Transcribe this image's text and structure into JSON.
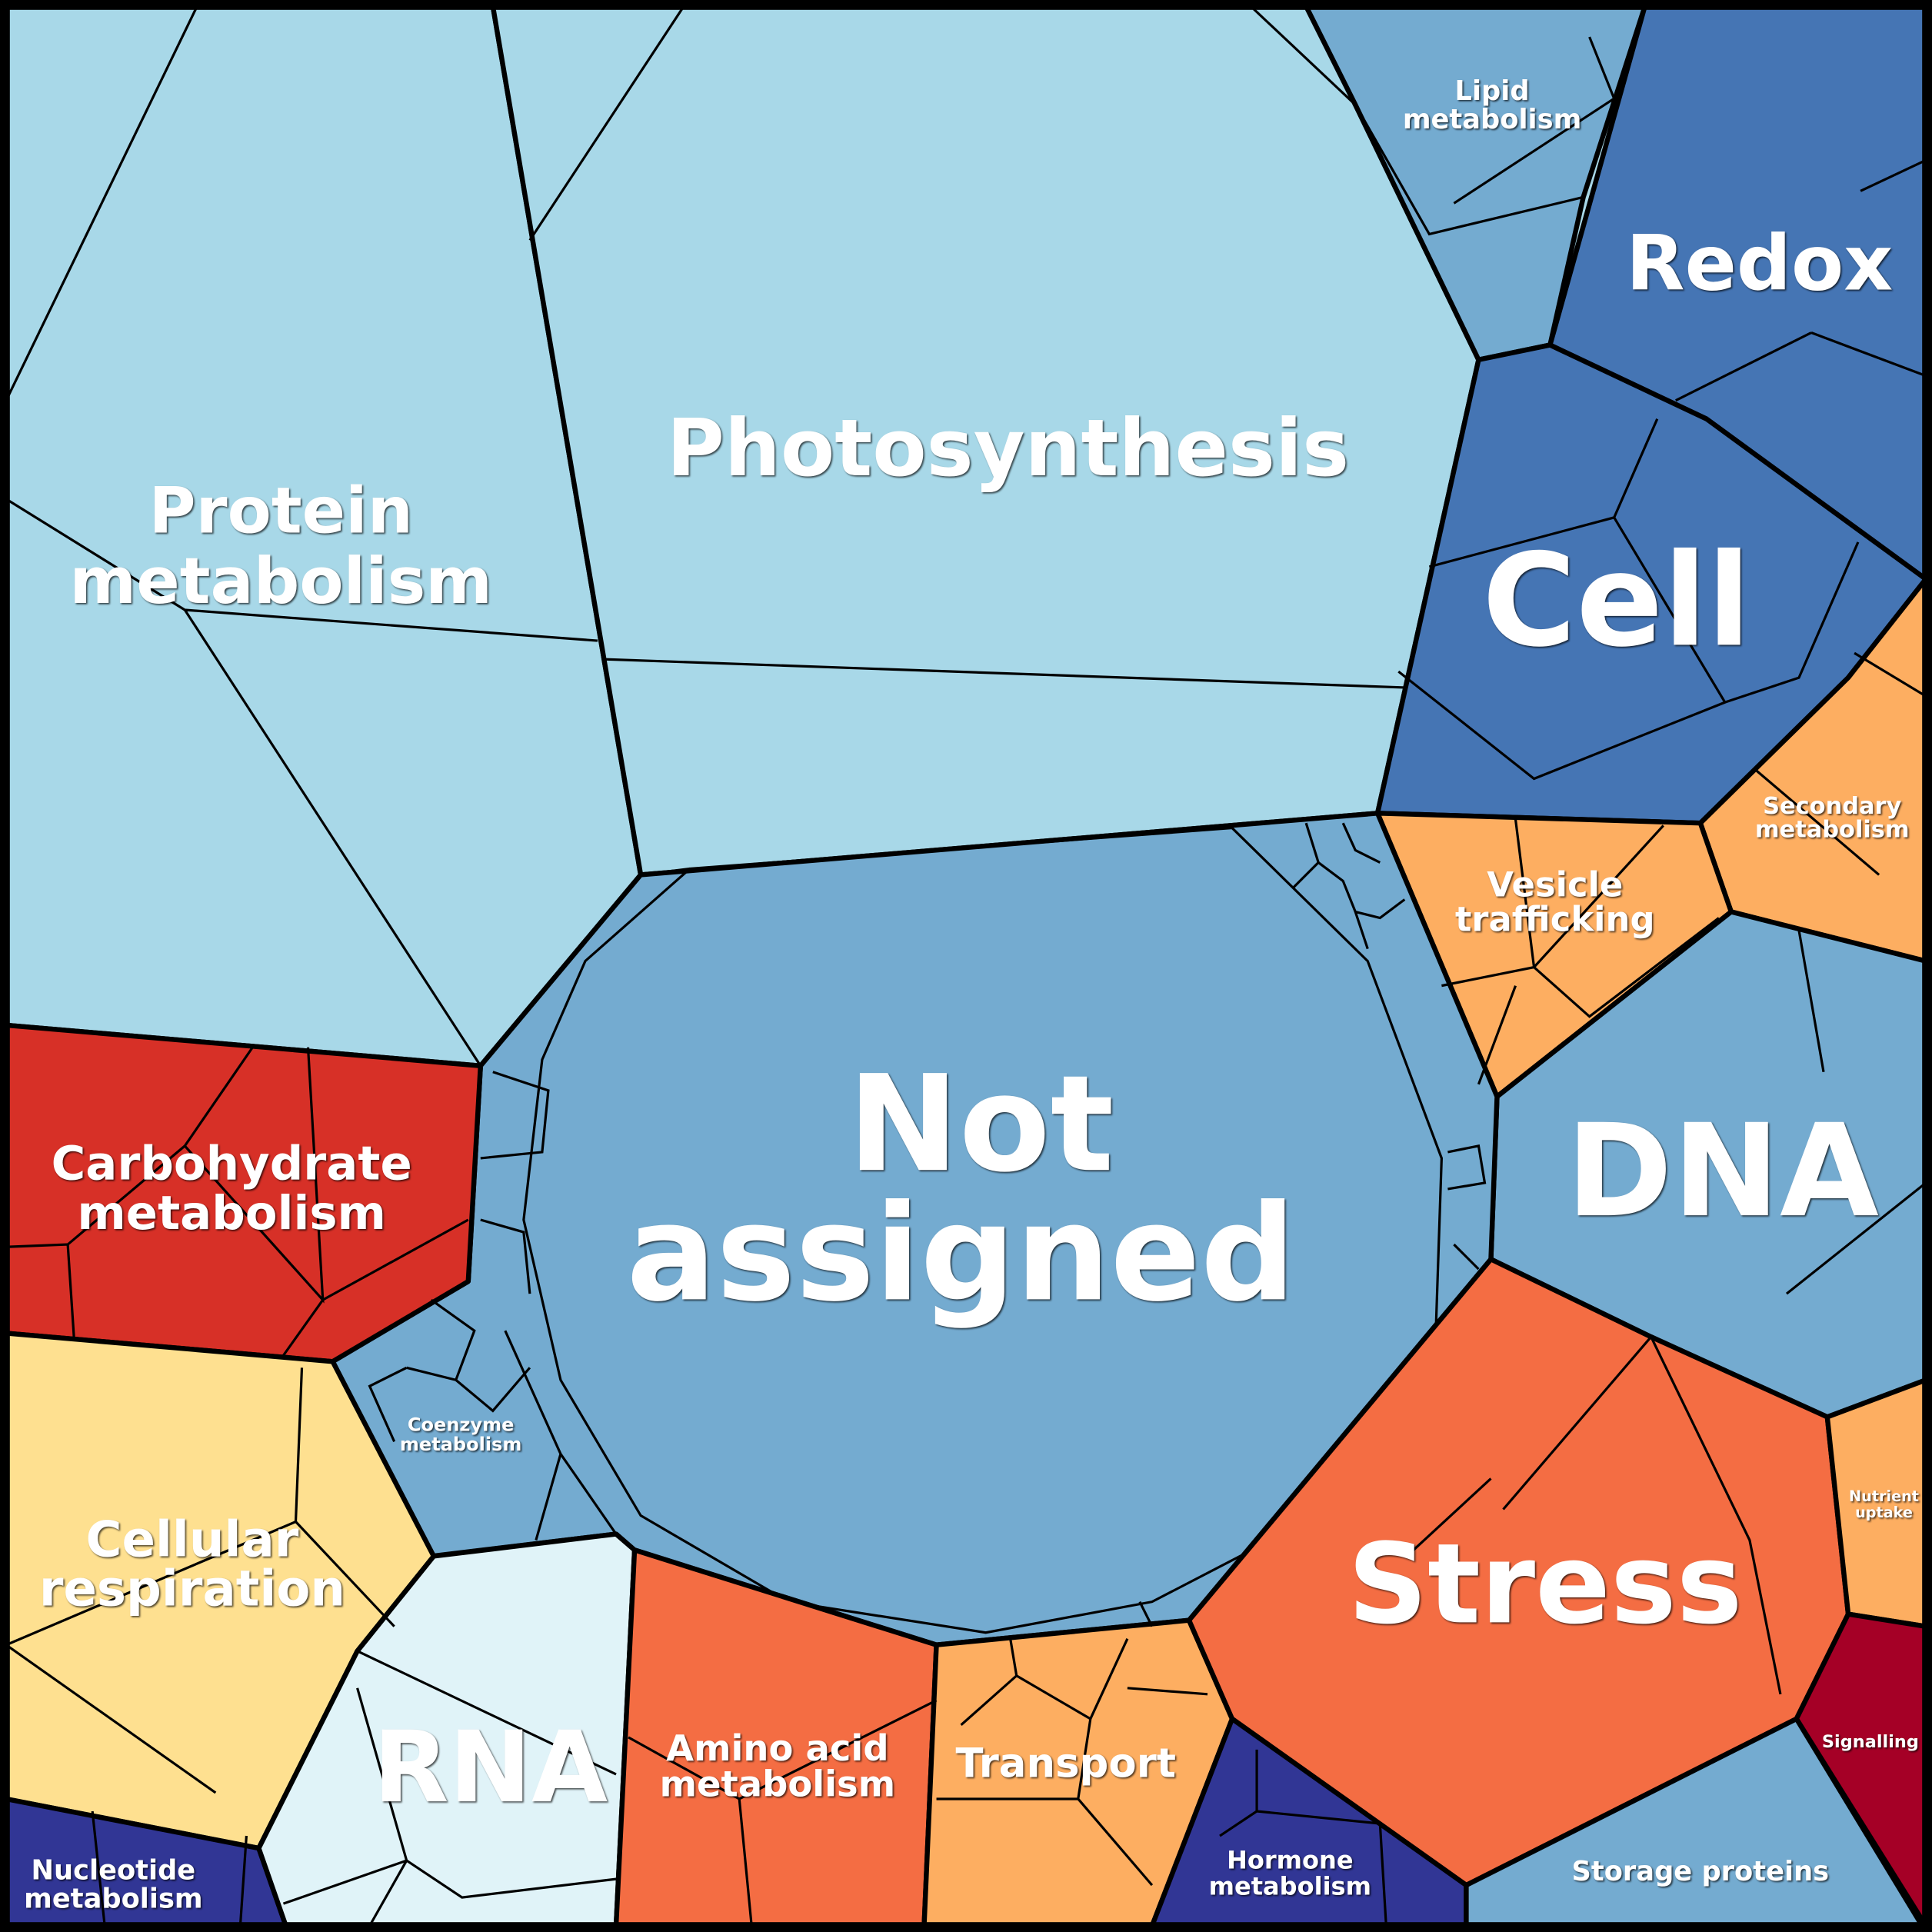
{
  "cells": [
    {
      "label": [
        "Photosynthesis"
      ]
    },
    {
      "label": [
        "Protein",
        "metabolism"
      ]
    },
    {
      "label": [
        "Lipid",
        "metabolism"
      ]
    },
    {
      "label": [
        "Redox"
      ]
    },
    {
      "label": [
        "Cell"
      ]
    },
    {
      "label": [
        "Secondary",
        "metabolism"
      ]
    },
    {
      "label": [
        "Vesicle",
        "trafficking"
      ]
    },
    {
      "label": [
        "DNA"
      ]
    },
    {
      "label": [
        "Not",
        "assigned"
      ]
    },
    {
      "label": [
        "Carbohydrate",
        "metabolism"
      ]
    },
    {
      "label": [
        "Coenzyme",
        "metabolism"
      ]
    },
    {
      "label": [
        "Cellular",
        "respiration"
      ]
    },
    {
      "label": [
        "Nucleotide",
        "metabolism"
      ]
    },
    {
      "label": [
        "RNA"
      ]
    },
    {
      "label": [
        "Amino acid",
        "metabolism"
      ]
    },
    {
      "label": [
        "Transport"
      ]
    },
    {
      "label": [
        "Stress"
      ]
    },
    {
      "label": [
        "Nutrient",
        "uptake"
      ]
    },
    {
      "label": [
        "Signalling"
      ]
    },
    {
      "label": [
        "Hormone",
        "metabolism"
      ]
    },
    {
      "label": [
        "Storage proteins"
      ]
    }
  ]
}
